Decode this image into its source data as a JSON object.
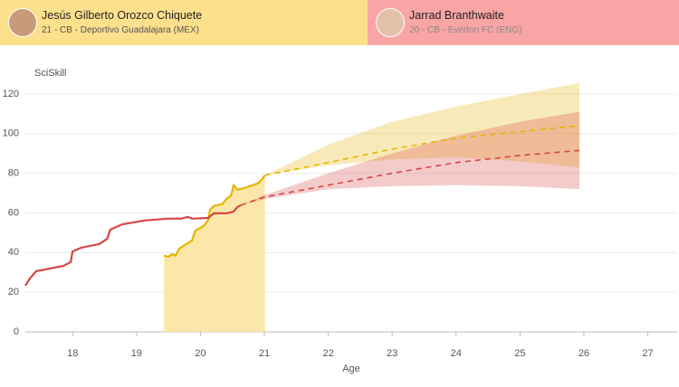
{
  "players": [
    {
      "name": "Jesús Gilberto Orozco Chiquete",
      "info": "21 - CB - Deportivo Guadalajara (MEX)"
    },
    {
      "name": "Jarrad Branthwaite",
      "info": "20 - CB - Everton FC (ENG)"
    }
  ],
  "chart_data": {
    "type": "line",
    "y_label": "SciSkill",
    "x_label": "Age",
    "xlim": [
      17.26,
      27.46
    ],
    "xticks": [
      18,
      19,
      20,
      21,
      22,
      23,
      24,
      25,
      26,
      27
    ],
    "ylim": [
      0,
      125
    ],
    "yticks": [
      0,
      20,
      40,
      60,
      80,
      100,
      120
    ],
    "grid": true,
    "series": [
      {
        "color": "#d64545",
        "x": [
          17.26,
          17.33,
          17.43,
          17.65,
          17.86,
          17.97,
          18.0,
          18.14,
          18.42,
          18.54,
          18.59,
          18.78,
          19.13,
          19.49,
          19.7,
          19.8,
          19.87,
          20.12,
          20.21,
          20.41,
          20.52,
          20.58,
          20.63
        ],
        "values": [
          23.3,
          26.9,
          30.6,
          32,
          33.3,
          35.2,
          40.6,
          42.5,
          44.3,
          47,
          51.6,
          54.3,
          56.2,
          57.1,
          57.1,
          58,
          57.1,
          57.5,
          59.8,
          59.8,
          60.7,
          63,
          63.9
        ],
        "projection": {
          "x": [
            20.63,
            21,
            22,
            23,
            24,
            25,
            25.93
          ],
          "values": [
            63.9,
            68,
            74,
            80,
            85.4,
            89,
            91.5
          ],
          "lower": [
            63.9,
            67,
            72,
            73.5,
            74,
            73.5,
            72
          ],
          "upper": [
            63.9,
            69,
            80,
            90,
            99,
            106,
            111
          ]
        }
      },
      {
        "color": "#e6b400",
        "area_color": "#fbe7a8",
        "x": [
          19.43,
          19.5,
          19.56,
          19.61,
          19.67,
          19.78,
          19.87,
          19.92,
          20.05,
          20.12,
          20.15,
          20.21,
          20.34,
          20.41,
          20.48,
          20.52,
          20.58,
          20.69,
          20.9,
          20.97,
          21.01
        ],
        "values": [
          38.4,
          37.9,
          39.3,
          38.4,
          42,
          44.3,
          46.1,
          51.1,
          53.4,
          56.2,
          61.6,
          63.5,
          64.4,
          67.1,
          69,
          74,
          71.7,
          72.6,
          74.9,
          77.2,
          79
        ],
        "projection": {
          "x": [
            21.01,
            22,
            23,
            24,
            25,
            25.93
          ],
          "values": [
            79,
            85.4,
            92.2,
            97.7,
            101,
            104
          ],
          "lower": [
            79,
            84,
            87,
            88,
            86,
            83
          ],
          "upper": [
            79,
            94.5,
            106,
            113.7,
            120,
            125.6
          ]
        }
      }
    ]
  }
}
